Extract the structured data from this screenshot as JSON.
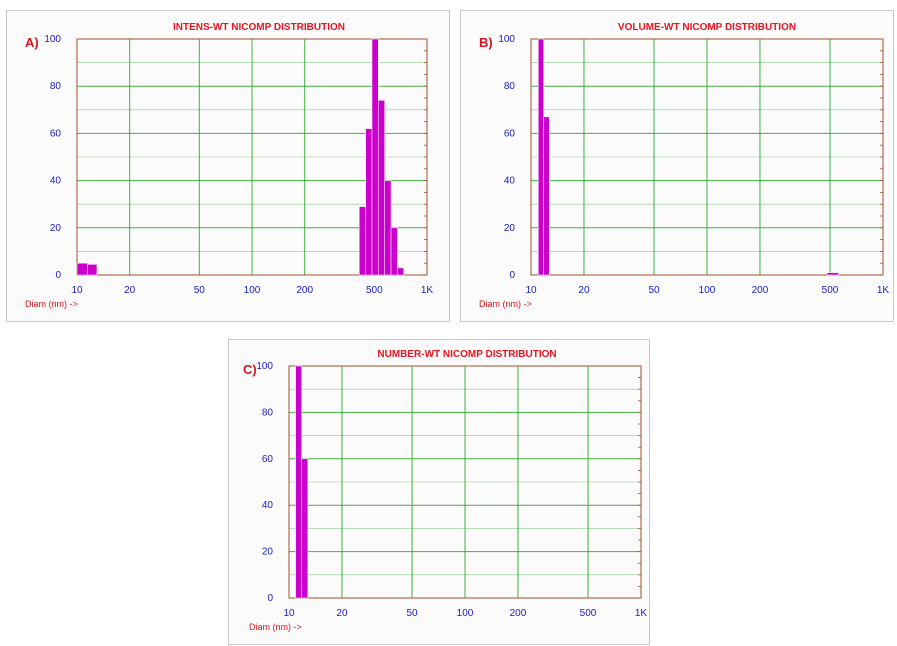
{
  "chart_data": [
    {
      "type": "bar",
      "panel_label": "A)",
      "title": "INTENS-WT NICOMP DISTRIBUTION",
      "xlabel": "Diam (nm) ->",
      "ylabel": "",
      "x_scale": "log",
      "xlim": [
        10,
        1000
      ],
      "ylim": [
        0,
        100
      ],
      "xticks": [
        10,
        20,
        50,
        100,
        200,
        500,
        1000
      ],
      "xtick_labels": [
        "10",
        "20",
        "50",
        "100",
        "200",
        "500",
        "1K"
      ],
      "yticks": [
        0,
        20,
        40,
        60,
        80,
        100
      ],
      "ytick_labels": [
        "0",
        "20",
        "40",
        "60",
        "80",
        "100"
      ],
      "grid": true,
      "bar_color": "#cc00cc",
      "bars": [
        {
          "x0": 10.0,
          "x1": 11.5,
          "y": 5
        },
        {
          "x0": 11.5,
          "x1": 13.0,
          "y": 4.5
        },
        {
          "x0": 410,
          "x1": 446,
          "y": 29
        },
        {
          "x0": 446,
          "x1": 485,
          "y": 62
        },
        {
          "x0": 485,
          "x1": 527,
          "y": 100
        },
        {
          "x0": 527,
          "x1": 573,
          "y": 74
        },
        {
          "x0": 573,
          "x1": 623,
          "y": 40
        },
        {
          "x0": 623,
          "x1": 678,
          "y": 20
        },
        {
          "x0": 678,
          "x1": 737,
          "y": 3
        }
      ]
    },
    {
      "type": "bar",
      "panel_label": "B)",
      "title": "VOLUME-WT NICOMP DISTRIBUTION",
      "xlabel": "Diam (nm) ->",
      "ylabel": "",
      "x_scale": "log",
      "xlim": [
        10,
        1000
      ],
      "ylim": [
        0,
        100
      ],
      "xticks": [
        10,
        20,
        50,
        100,
        200,
        500,
        1000
      ],
      "xtick_labels": [
        "10",
        "20",
        "50",
        "100",
        "200",
        "500",
        "1K"
      ],
      "yticks": [
        0,
        20,
        40,
        60,
        80,
        100
      ],
      "ytick_labels": [
        "0",
        "20",
        "40",
        "60",
        "80",
        "100"
      ],
      "grid": true,
      "bar_color": "#cc00cc",
      "bars": [
        {
          "x0": 11.0,
          "x1": 11.8,
          "y": 100
        },
        {
          "x0": 11.8,
          "x1": 12.7,
          "y": 67
        },
        {
          "x0": 480,
          "x1": 560,
          "y": 1
        }
      ]
    },
    {
      "type": "bar",
      "panel_label": "C)",
      "title": "NUMBER-WT NICOMP DISTRIBUTION",
      "xlabel": "Diam (nm) ->",
      "ylabel": "",
      "x_scale": "log",
      "xlim": [
        10,
        1000
      ],
      "ylim": [
        0,
        100
      ],
      "xticks": [
        10,
        20,
        50,
        100,
        200,
        500,
        1000
      ],
      "xtick_labels": [
        "10",
        "20",
        "50",
        "100",
        "200",
        "500",
        "1K"
      ],
      "yticks": [
        0,
        20,
        40,
        60,
        80,
        100
      ],
      "ytick_labels": [
        "0",
        "20",
        "40",
        "60",
        "80",
        "100"
      ],
      "grid": true,
      "bar_color": "#cc00cc",
      "bars": [
        {
          "x0": 10.9,
          "x1": 11.8,
          "y": 100
        },
        {
          "x0": 11.8,
          "x1": 12.8,
          "y": 60
        }
      ]
    }
  ]
}
